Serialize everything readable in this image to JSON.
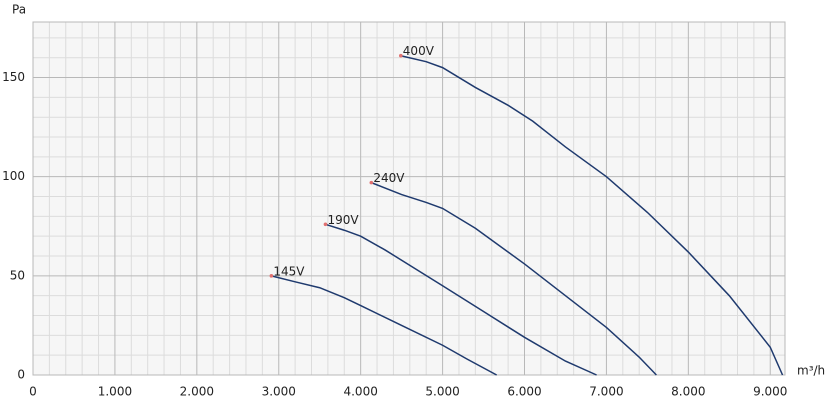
{
  "chart_data": {
    "type": "line",
    "y_label": "Pa",
    "x_label": "m³/h",
    "xlim": [
      0,
      9180
    ],
    "ylim": [
      0,
      178
    ],
    "xticks": [
      0,
      {
        "value": 1000,
        "label": "1.000"
      },
      {
        "value": 2000,
        "label": "2.000"
      },
      {
        "value": 3000,
        "label": "3.000"
      },
      {
        "value": 4000,
        "label": "4.000"
      },
      {
        "value": 5000,
        "label": "5.000"
      },
      {
        "value": 6000,
        "label": "6.000"
      },
      {
        "value": 7000,
        "label": "7.000"
      },
      {
        "value": 8000,
        "label": "8.000"
      },
      {
        "value": 9000,
        "label": "9.000"
      }
    ],
    "yticks": [
      0,
      50,
      100,
      150
    ],
    "x_minor_ticks": [
      200,
      400,
      600,
      800,
      1200,
      1400,
      1600,
      1800,
      2200,
      2400,
      2600,
      2800,
      3200,
      3400,
      3600,
      3800,
      4200,
      4400,
      4600,
      4800,
      5200,
      5400,
      5600,
      5800,
      6200,
      6400,
      6600,
      6800,
      7200,
      7400,
      7600,
      7800,
      8200,
      8400,
      8600,
      8800,
      9200
    ],
    "y_minor_ticks": [
      10,
      20,
      30,
      40,
      60,
      70,
      80,
      90,
      110,
      120,
      130,
      140,
      160,
      170
    ],
    "grid": true,
    "series": [
      {
        "name": "400V",
        "color": "#1f3a6e",
        "x": [
          4490,
          4800,
          5000,
          5400,
          5800,
          6100,
          6500,
          7000,
          7500,
          8000,
          8500,
          9000,
          9150
        ],
        "values": [
          161,
          158,
          155,
          145,
          136,
          128,
          115,
          100,
          82,
          62,
          40,
          14,
          0
        ]
      },
      {
        "name": "240V",
        "color": "#1f3a6e",
        "x": [
          4130,
          4500,
          4800,
          5000,
          5400,
          6000,
          6500,
          7000,
          7400,
          7610
        ],
        "values": [
          97,
          91,
          87,
          84,
          74,
          56,
          40,
          24,
          9,
          0
        ]
      },
      {
        "name": "190V",
        "color": "#1f3a6e",
        "x": [
          3570,
          3800,
          4000,
          4300,
          5000,
          5500,
          6000,
          6500,
          6880
        ],
        "values": [
          76,
          73,
          70,
          63,
          45,
          32,
          19,
          7,
          0
        ]
      },
      {
        "name": "145V",
        "color": "#1f3a6e",
        "x": [
          2910,
          3200,
          3500,
          3800,
          4000,
          4500,
          5000,
          5300,
          5660
        ],
        "values": [
          50,
          47,
          44,
          39,
          35,
          25,
          15,
          8,
          0
        ]
      }
    ]
  }
}
